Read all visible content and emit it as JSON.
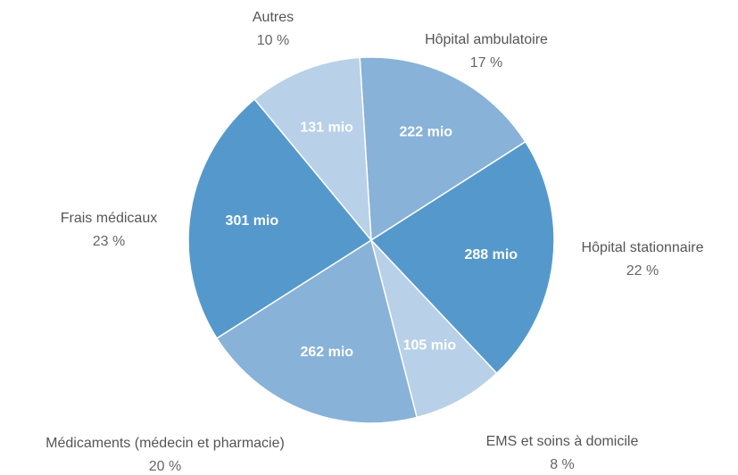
{
  "chart_data": {
    "type": "pie",
    "categories": [
      "Hôpital ambulatoire",
      "Hôpital stationnaire",
      "EMS et soins à domicile",
      "Médicaments (médecin et pharmacie)",
      "Frais médicaux",
      "Autres"
    ],
    "values": [
      222,
      288,
      105,
      262,
      301,
      131
    ],
    "value_labels": [
      "222 mio",
      "288 mio",
      "105 mio",
      "262 mio",
      "301 mio",
      "131 mio"
    ],
    "shares": [
      17,
      22,
      8,
      20,
      23,
      10
    ],
    "share_labels": [
      "17 %",
      "22 %",
      "8 %",
      "20 %",
      "23 %",
      "10 %"
    ],
    "colors": [
      "#88b2d8",
      "#5599cc",
      "#b8d0e8",
      "#88b2d8",
      "#5599cc",
      "#b8d0e8"
    ]
  }
}
